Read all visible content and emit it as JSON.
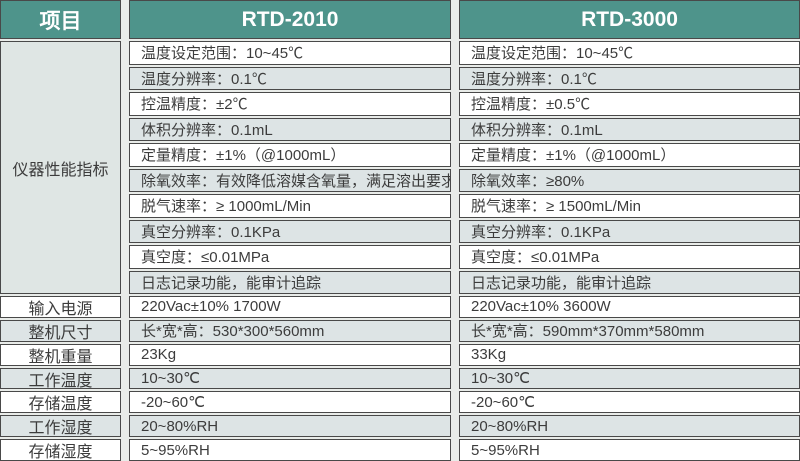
{
  "header": {
    "item": "项目",
    "product1": "RTD-2010",
    "product2": "RTD-3000"
  },
  "performance_section": {
    "label": "仪器性能指标",
    "rows": [
      {
        "rtd2010": "温度设定范围：10~45℃",
        "rtd3000": "温度设定范围：10~45℃"
      },
      {
        "rtd2010": "温度分辨率：0.1℃",
        "rtd3000": "温度分辨率：0.1℃"
      },
      {
        "rtd2010": "控温精度：±2℃",
        "rtd3000": "控温精度：±0.5℃"
      },
      {
        "rtd2010": "体积分辨率：0.1mL",
        "rtd3000": "体积分辨率：0.1mL"
      },
      {
        "rtd2010": "定量精度：±1%（@1000mL）",
        "rtd3000": "定量精度：±1%（@1000mL）"
      },
      {
        "rtd2010": "除氧效率：有效降低溶媒含氧量，满足溶出要求",
        "rtd3000": "除氧效率：≥80%"
      },
      {
        "rtd2010": "脱气速率：≥ 1000mL/Min",
        "rtd3000": "脱气速率：≥ 1500mL/Min"
      },
      {
        "rtd2010": "真空分辨率：0.1KPa",
        "rtd3000": "真空分辨率：0.1KPa"
      },
      {
        "rtd2010": "真空度：≤0.01MPa",
        "rtd3000": "真空度：≤0.01MPa"
      },
      {
        "rtd2010": "日志记录功能，能审计追踪",
        "rtd3000": "日志记录功能，能审计追踪"
      }
    ]
  },
  "general_rows": [
    {
      "label": "输入电源",
      "rtd2010": "220Vac±10% 1700W",
      "rtd3000": "220Vac±10% 3600W"
    },
    {
      "label": "整机尺寸",
      "rtd2010": "长*宽*高：530*300*560mm",
      "rtd3000": "长*宽*高：590mm*370mm*580mm"
    },
    {
      "label": "整机重量",
      "rtd2010": "23Kg",
      "rtd3000": "33Kg"
    },
    {
      "label": "工作温度",
      "rtd2010": "10~30℃",
      "rtd3000": "10~30℃"
    },
    {
      "label": "存储温度",
      "rtd2010": "-20~60℃",
      "rtd3000": "-20~60℃"
    },
    {
      "label": "工作湿度",
      "rtd2010": "20~80%RH",
      "rtd3000": "20~80%RH"
    },
    {
      "label": "存储湿度",
      "rtd2010": "5~95%RH",
      "rtd3000": "5~95%RH"
    }
  ],
  "colors": {
    "header_bg": "#4e948b",
    "header_text": "#ffffff",
    "stripe_bg": "#dde4e5",
    "section_label_bg": "#dfe6e4",
    "row_bg": "#ffffff",
    "border": "#494949",
    "text": "#3c3c3c",
    "gap_bg": "#e9ece9"
  }
}
